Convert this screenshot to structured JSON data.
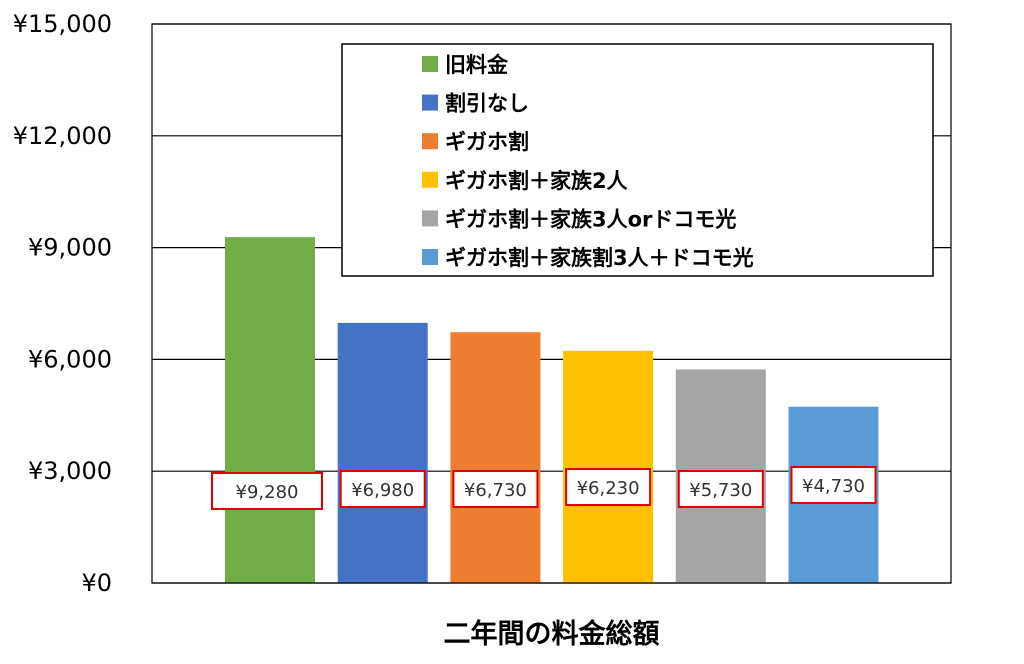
{
  "chart_data": {
    "type": "bar",
    "xlabel": "二年間の料金総額",
    "ylabel": "",
    "ylim": [
      0,
      15000
    ],
    "yticks": [
      0,
      3000,
      6000,
      9000,
      12000,
      15000
    ],
    "ytick_labels": [
      "¥0",
      "¥3,000",
      "¥6,000",
      "¥9,000",
      "¥12,000",
      "¥15,000"
    ],
    "grid": true,
    "legend_position": "top-right",
    "series": [
      {
        "name": "旧料金",
        "value": 9280,
        "label": "¥9,280",
        "color": "#70ad47"
      },
      {
        "name": "割引なし",
        "value": 6980,
        "label": "¥6,980",
        "color": "#4472c4"
      },
      {
        "name": "ギガホ割",
        "value": 6730,
        "label": "¥6,730",
        "color": "#ed7d31"
      },
      {
        "name": "ギガホ割＋家族2人",
        "value": 6230,
        "label": "¥6,230",
        "color": "#ffc000"
      },
      {
        "name": "ギガホ割＋家族3人orドコモ光",
        "value": 5730,
        "label": "¥5,730",
        "color": "#a5a5a5"
      },
      {
        "name": "ギガホ割＋家族割3人＋ドコモ光",
        "value": 4730,
        "label": "¥4,730",
        "color": "#5b9bd5"
      }
    ],
    "data_label_border_color": "#e00000"
  }
}
